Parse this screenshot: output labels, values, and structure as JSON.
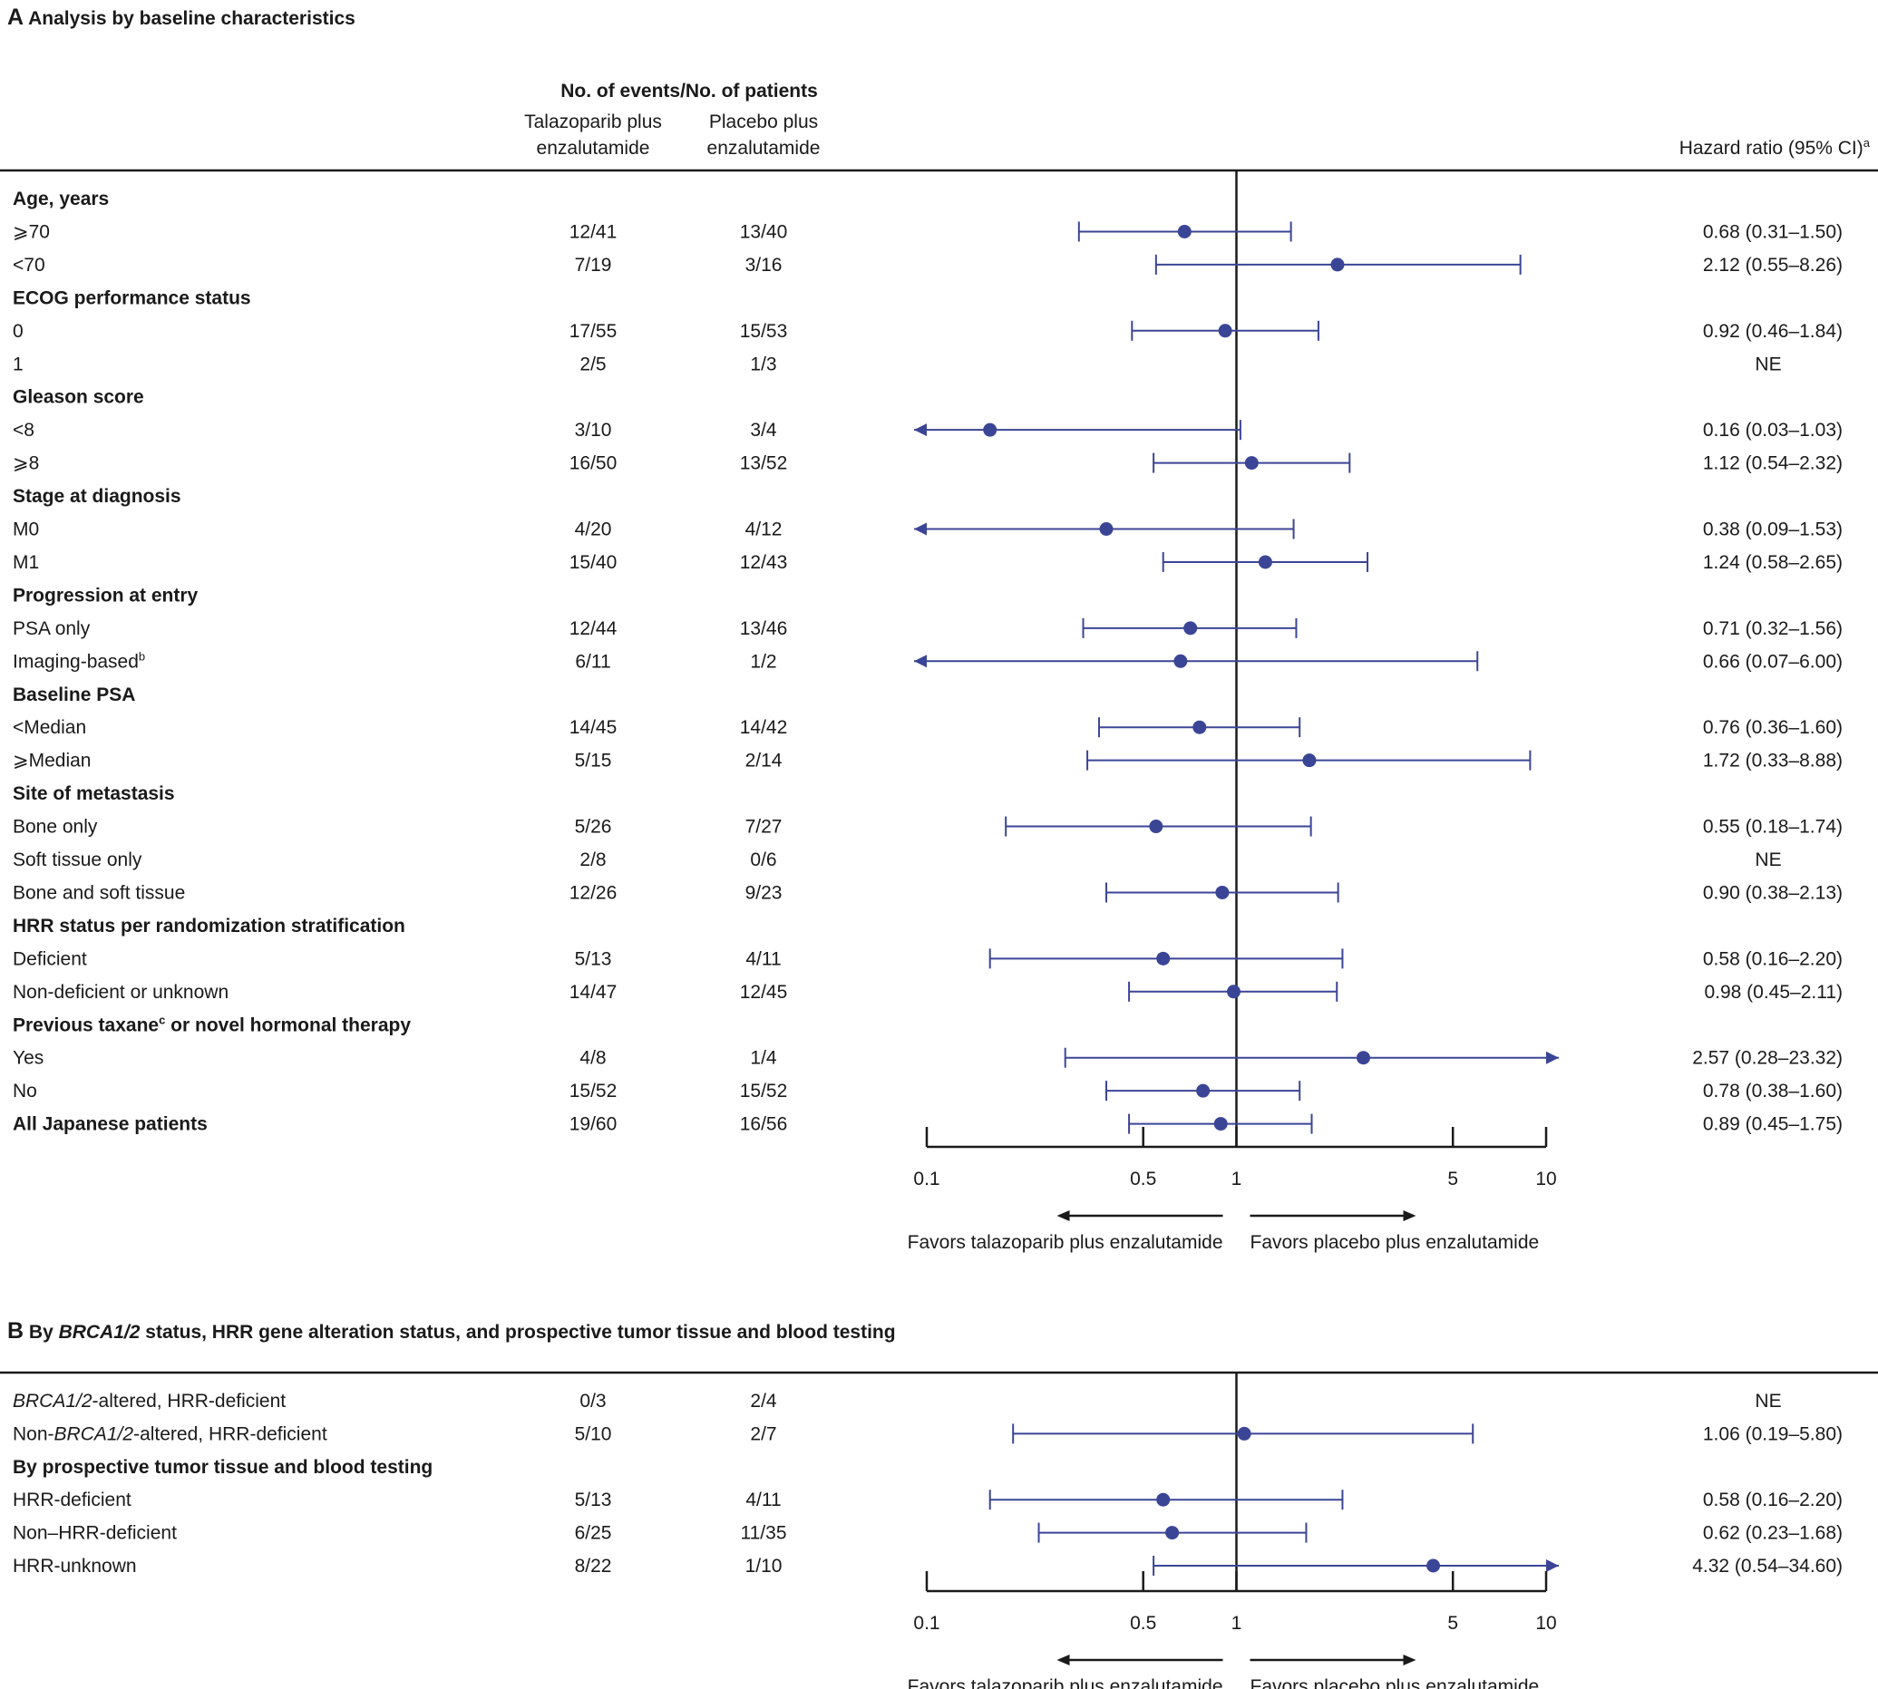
{
  "chart_data": [
    {
      "type": "forest",
      "panel": "A",
      "title": "Analysis by baseline characteristics",
      "header": {
        "group": "No. of events/No. of patients",
        "col1": [
          "Talazoparib plus",
          "enzalutamide"
        ],
        "col2": [
          "Placebo plus",
          "enzalutamide"
        ],
        "hr": "Hazard ratio (95% CI)",
        "hr_sup": "a"
      },
      "xscale": "log",
      "xlim": [
        0.1,
        10
      ],
      "xticks": [
        0.1,
        0.5,
        1,
        5,
        10
      ],
      "xtick_labels": [
        "0.1",
        "0.5",
        "1",
        "5",
        "10"
      ],
      "reference": 1,
      "favors_left": "Favors talazoparib plus enzalutamide",
      "favors_right": "Favors placebo plus enzalutamide",
      "rows": [
        {
          "label": "Age, years",
          "bold": true
        },
        {
          "label": "⩾70",
          "col1": "12/41",
          "col2": "13/40",
          "hr": 0.68,
          "lo": 0.31,
          "hi": 1.5,
          "text": "0.68 (0.31–1.50)"
        },
        {
          "label": "<70",
          "col1": "7/19",
          "col2": "3/16",
          "hr": 2.12,
          "lo": 0.55,
          "hi": 8.26,
          "text": "2.12 (0.55–8.26)"
        },
        {
          "label": "ECOG performance status",
          "bold": true
        },
        {
          "label": "0",
          "col1": "17/55",
          "col2": "15/53",
          "hr": 0.92,
          "lo": 0.46,
          "hi": 1.84,
          "text": "0.92 (0.46–1.84)"
        },
        {
          "label": "1",
          "col1": "2/5",
          "col2": "1/3",
          "text": "NE"
        },
        {
          "label": "Gleason score",
          "bold": true
        },
        {
          "label": "<8",
          "col1": "3/10",
          "col2": "3/4",
          "hr": 0.16,
          "lo": 0.03,
          "hi": 1.03,
          "text": "0.16 (0.03–1.03)"
        },
        {
          "label": "⩾8",
          "col1": "16/50",
          "col2": "13/52",
          "hr": 1.12,
          "lo": 0.54,
          "hi": 2.32,
          "text": "1.12 (0.54–2.32)"
        },
        {
          "label": "Stage at diagnosis",
          "bold": true
        },
        {
          "label": "M0",
          "col1": "4/20",
          "col2": "4/12",
          "hr": 0.38,
          "lo": 0.09,
          "hi": 1.53,
          "text": "0.38 (0.09–1.53)"
        },
        {
          "label": "M1",
          "col1": "15/40",
          "col2": "12/43",
          "hr": 1.24,
          "lo": 0.58,
          "hi": 2.65,
          "text": "1.24 (0.58–2.65)"
        },
        {
          "label": "Progression at entry",
          "bold": true
        },
        {
          "label": "PSA only",
          "col1": "12/44",
          "col2": "13/46",
          "hr": 0.71,
          "lo": 0.32,
          "hi": 1.56,
          "text": "0.71 (0.32–1.56)"
        },
        {
          "label": "Imaging-based",
          "sup": "b",
          "col1": "6/11",
          "col2": "1/2",
          "hr": 0.66,
          "lo": 0.07,
          "hi": 6.0,
          "text": "0.66 (0.07–6.00)"
        },
        {
          "label": "Baseline PSA",
          "bold": true
        },
        {
          "label": "<Median",
          "col1": "14/45",
          "col2": "14/42",
          "hr": 0.76,
          "lo": 0.36,
          "hi": 1.6,
          "text": "0.76 (0.36–1.60)"
        },
        {
          "label": "⩾Median",
          "col1": "5/15",
          "col2": "2/14",
          "hr": 1.72,
          "lo": 0.33,
          "hi": 8.88,
          "text": "1.72 (0.33–8.88)"
        },
        {
          "label": "Site of metastasis",
          "bold": true
        },
        {
          "label": "Bone only",
          "col1": "5/26",
          "col2": "7/27",
          "hr": 0.55,
          "lo": 0.18,
          "hi": 1.74,
          "text": "0.55 (0.18–1.74)"
        },
        {
          "label": "Soft tissue only",
          "col1": "2/8",
          "col2": "0/6",
          "text": "NE"
        },
        {
          "label": "Bone and soft tissue",
          "col1": "12/26",
          "col2": "9/23",
          "hr": 0.9,
          "lo": 0.38,
          "hi": 2.13,
          "text": "0.90 (0.38–2.13)"
        },
        {
          "label": "HRR status per randomization stratification",
          "bold": true
        },
        {
          "label": "Deficient",
          "col1": "5/13",
          "col2": "4/11",
          "hr": 0.58,
          "lo": 0.16,
          "hi": 2.2,
          "text": "0.58 (0.16–2.20)"
        },
        {
          "label": "Non-deficient or unknown",
          "col1": "14/47",
          "col2": "12/45",
          "hr": 0.98,
          "lo": 0.45,
          "hi": 2.11,
          "text": "0.98 (0.45–2.11)"
        },
        {
          "label": "Previous taxane",
          "sup": "c",
          "label_after": " or novel hormonal therapy",
          "bold": true
        },
        {
          "label": "Yes",
          "col1": "4/8",
          "col2": "1/4",
          "hr": 2.57,
          "lo": 0.28,
          "hi": 23.32,
          "text": "2.57 (0.28–23.32)"
        },
        {
          "label": "No",
          "col1": "15/52",
          "col2": "15/52",
          "hr": 0.78,
          "lo": 0.38,
          "hi": 1.6,
          "text": "0.78 (0.38–1.60)"
        },
        {
          "label": "All Japanese patients",
          "bold": true,
          "col1": "19/60",
          "col2": "16/56",
          "hr": 0.89,
          "lo": 0.45,
          "hi": 1.75,
          "text": "0.89 (0.45–1.75)"
        }
      ]
    },
    {
      "type": "forest",
      "panel": "B",
      "title_parts": [
        "By ",
        "BRCA1/2",
        " status, HRR gene alteration status, and prospective tumor tissue and blood testing"
      ],
      "xscale": "log",
      "xlim": [
        0.1,
        10
      ],
      "xticks": [
        0.1,
        0.5,
        1,
        5,
        10
      ],
      "xtick_labels": [
        "0.1",
        "0.5",
        "1",
        "5",
        "10"
      ],
      "reference": 1,
      "favors_left": "Favors talazoparib plus enzalutamide",
      "favors_right": "Favors placebo plus enzalutamide",
      "rows": [
        {
          "label_parts": [
            "",
            "BRCA1/2",
            "-altered, HRR-deficient"
          ],
          "col1": "0/3",
          "col2": "2/4",
          "text": "NE"
        },
        {
          "label_parts": [
            "Non-",
            "BRCA1/2",
            "-altered, HRR-deficient"
          ],
          "col1": "5/10",
          "col2": "2/7",
          "hr": 1.06,
          "lo": 0.19,
          "hi": 5.8,
          "text": "1.06 (0.19–5.80)"
        },
        {
          "label": "By prospective tumor tissue and blood testing",
          "bold": true
        },
        {
          "label": "HRR-deficient",
          "col1": "5/13",
          "col2": "4/11",
          "hr": 0.58,
          "lo": 0.16,
          "hi": 2.2,
          "text": "0.58 (0.16–2.20)"
        },
        {
          "label": "Non–HRR-deficient",
          "col1": "6/25",
          "col2": "11/35",
          "hr": 0.62,
          "lo": 0.23,
          "hi": 1.68,
          "text": "0.62 (0.23–1.68)"
        },
        {
          "label": "HRR-unknown",
          "col1": "8/22",
          "col2": "1/10",
          "hr": 4.32,
          "lo": 0.54,
          "hi": 34.6,
          "text": "4.32 (0.54–34.60)"
        }
      ]
    }
  ],
  "colors": {
    "marker": "#3b4596",
    "text": "#1a1a1a",
    "rule": "#1a1a1a"
  }
}
